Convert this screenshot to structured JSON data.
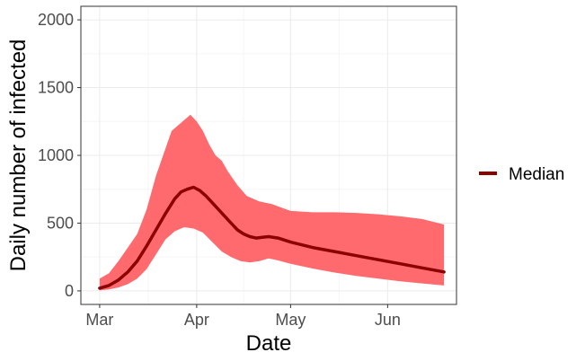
{
  "chart_data": {
    "type": "area",
    "title": "",
    "xlabel": "Date",
    "ylabel": "Daily number of infected",
    "x_tick_labels": [
      "Mar",
      "Apr",
      "May",
      "Jun"
    ],
    "x_tick_dates": [
      "2020-03-01",
      "2020-04-01",
      "2020-05-01",
      "2020-06-01"
    ],
    "xlim": [
      "2020-02-24",
      "2020-06-23"
    ],
    "y_ticks": [
      0,
      500,
      1000,
      1500,
      2000
    ],
    "y_tick_labels": [
      "0",
      "500",
      "1000",
      "1500",
      "2000"
    ],
    "ylim": [
      -100,
      2100
    ],
    "grid": true,
    "legend_position": "right",
    "colors": {
      "median": "#8B0000",
      "band": "#FF6A6E",
      "grid_major": "#EBEBEB",
      "grid_minor": "#F5F5F5",
      "panel_border": "#333333"
    },
    "median": {
      "name": "Median",
      "points": [
        [
          "2020-03-01",
          20
        ],
        [
          "2020-03-04",
          40
        ],
        [
          "2020-03-07",
          80
        ],
        [
          "2020-03-10",
          140
        ],
        [
          "2020-03-13",
          220
        ],
        [
          "2020-03-16",
          330
        ],
        [
          "2020-03-19",
          450
        ],
        [
          "2020-03-22",
          570
        ],
        [
          "2020-03-25",
          680
        ],
        [
          "2020-03-27",
          730
        ],
        [
          "2020-03-29",
          750
        ],
        [
          "2020-03-31",
          765
        ],
        [
          "2020-04-02",
          740
        ],
        [
          "2020-04-04",
          700
        ],
        [
          "2020-04-06",
          650
        ],
        [
          "2020-04-08",
          600
        ],
        [
          "2020-04-10",
          550
        ],
        [
          "2020-04-12",
          500
        ],
        [
          "2020-04-14",
          450
        ],
        [
          "2020-04-16",
          420
        ],
        [
          "2020-04-18",
          400
        ],
        [
          "2020-04-20",
          390
        ],
        [
          "2020-04-22",
          395
        ],
        [
          "2020-04-24",
          400
        ],
        [
          "2020-04-27",
          390
        ],
        [
          "2020-05-01",
          360
        ],
        [
          "2020-05-08",
          320
        ],
        [
          "2020-05-15",
          290
        ],
        [
          "2020-05-22",
          260
        ],
        [
          "2020-05-29",
          230
        ],
        [
          "2020-06-05",
          200
        ],
        [
          "2020-06-12",
          170
        ],
        [
          "2020-06-19",
          140
        ]
      ]
    },
    "band": {
      "upper": [
        [
          "2020-03-01",
          90
        ],
        [
          "2020-03-04",
          130
        ],
        [
          "2020-03-07",
          220
        ],
        [
          "2020-03-10",
          320
        ],
        [
          "2020-03-13",
          420
        ],
        [
          "2020-03-16",
          600
        ],
        [
          "2020-03-19",
          850
        ],
        [
          "2020-03-22",
          1050
        ],
        [
          "2020-03-24",
          1180
        ],
        [
          "2020-03-26",
          1220
        ],
        [
          "2020-03-28",
          1260
        ],
        [
          "2020-03-30",
          1300
        ],
        [
          "2020-04-01",
          1250
        ],
        [
          "2020-04-03",
          1180
        ],
        [
          "2020-04-05",
          1080
        ],
        [
          "2020-04-07",
          1000
        ],
        [
          "2020-04-09",
          960
        ],
        [
          "2020-04-11",
          880
        ],
        [
          "2020-04-14",
          780
        ],
        [
          "2020-04-17",
          700
        ],
        [
          "2020-04-21",
          660
        ],
        [
          "2020-04-25",
          640
        ],
        [
          "2020-05-01",
          590
        ],
        [
          "2020-05-08",
          580
        ],
        [
          "2020-05-15",
          580
        ],
        [
          "2020-05-22",
          575
        ],
        [
          "2020-05-29",
          565
        ],
        [
          "2020-06-05",
          550
        ],
        [
          "2020-06-12",
          530
        ],
        [
          "2020-06-19",
          490
        ]
      ],
      "lower": [
        [
          "2020-03-01",
          5
        ],
        [
          "2020-03-04",
          10
        ],
        [
          "2020-03-07",
          25
        ],
        [
          "2020-03-10",
          50
        ],
        [
          "2020-03-13",
          90
        ],
        [
          "2020-03-16",
          160
        ],
        [
          "2020-03-19",
          270
        ],
        [
          "2020-03-22",
          380
        ],
        [
          "2020-03-25",
          440
        ],
        [
          "2020-03-28",
          470
        ],
        [
          "2020-03-31",
          460
        ],
        [
          "2020-04-03",
          430
        ],
        [
          "2020-04-06",
          360
        ],
        [
          "2020-04-09",
          290
        ],
        [
          "2020-04-12",
          250
        ],
        [
          "2020-04-15",
          220
        ],
        [
          "2020-04-18",
          210
        ],
        [
          "2020-04-21",
          220
        ],
        [
          "2020-04-24",
          240
        ],
        [
          "2020-04-27",
          225
        ],
        [
          "2020-05-01",
          200
        ],
        [
          "2020-05-08",
          165
        ],
        [
          "2020-05-15",
          135
        ],
        [
          "2020-05-22",
          110
        ],
        [
          "2020-05-29",
          90
        ],
        [
          "2020-06-05",
          70
        ],
        [
          "2020-06-12",
          55
        ],
        [
          "2020-06-19",
          40
        ]
      ]
    }
  }
}
